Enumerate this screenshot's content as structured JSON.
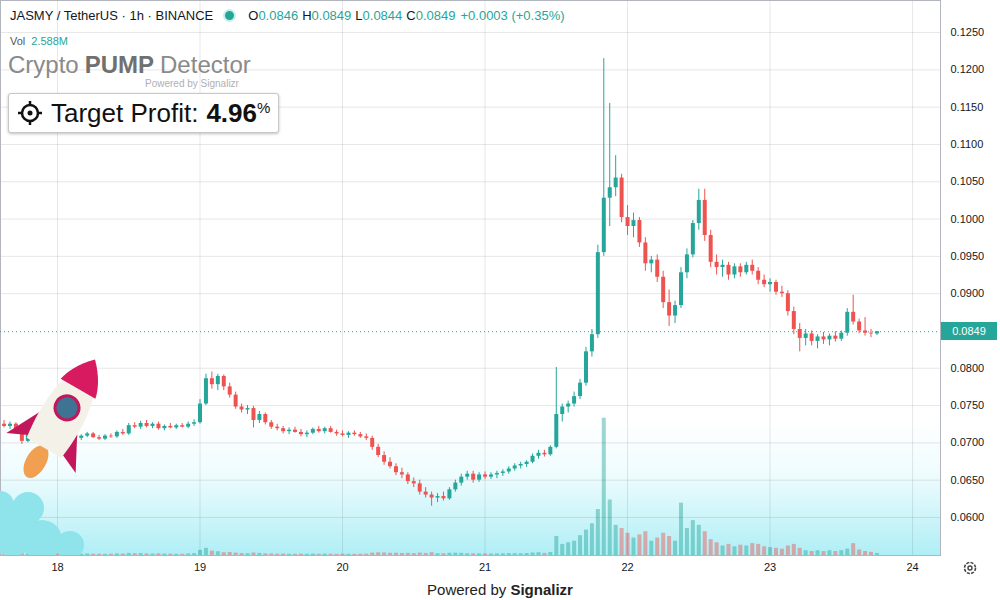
{
  "chart_data": {
    "type": "candlestick",
    "header": "JASMY / TetherUS · 1h · BINANCE",
    "ohlc": [
      {
        "label": "O",
        "value": "0.0846"
      },
      {
        "label": "H",
        "value": "0.0849"
      },
      {
        "label": "L",
        "value": "0.0844"
      },
      {
        "label": "C",
        "value": "0.0849"
      }
    ],
    "change": "+0.0003 (+0.35%)",
    "vol_label": "Vol",
    "vol_value": "2.588M",
    "title": "Crypto PUMP Detector",
    "title_note": "Powered by Signalizr",
    "target_profit": {
      "label": "Target Profit:",
      "value": "4.96",
      "unit": "%"
    },
    "caption": "Powered by Signalizr",
    "x": [
      17.625,
      17.6667,
      17.7083,
      17.75,
      17.7917,
      17.8333,
      17.875,
      17.9167,
      17.9583,
      18,
      18.0417,
      18.0833,
      18.125,
      18.1667,
      18.2083,
      18.25,
      18.2917,
      18.3333,
      18.375,
      18.4167,
      18.4583,
      18.5,
      18.5417,
      18.5833,
      18.625,
      18.6667,
      18.7083,
      18.75,
      18.7917,
      18.8333,
      18.875,
      18.9167,
      18.9583,
      19,
      19.0417,
      19.0833,
      19.125,
      19.1667,
      19.2083,
      19.25,
      19.2917,
      19.3333,
      19.375,
      19.4167,
      19.4583,
      19.5,
      19.5417,
      19.5833,
      19.625,
      19.6667,
      19.7083,
      19.75,
      19.7917,
      19.8333,
      19.875,
      19.9167,
      19.9583,
      20,
      20.0417,
      20.0833,
      20.125,
      20.1667,
      20.2083,
      20.25,
      20.2917,
      20.3333,
      20.375,
      20.4167,
      20.4583,
      20.5,
      20.5417,
      20.5833,
      20.625,
      20.6667,
      20.7083,
      20.75,
      20.7917,
      20.8333,
      20.875,
      20.9167,
      20.9583,
      21,
      21.0417,
      21.0833,
      21.125,
      21.1667,
      21.2083,
      21.25,
      21.2917,
      21.3333,
      21.375,
      21.4167,
      21.4583,
      21.5,
      21.5417,
      21.5833,
      21.625,
      21.6667,
      21.7083,
      21.75,
      21.7917,
      21.8333,
      21.875,
      21.9167,
      21.9583,
      22,
      22.0417,
      22.0833,
      22.125,
      22.1667,
      22.2083,
      22.25,
      22.2917,
      22.3333,
      22.375,
      22.4167,
      22.4583,
      22.5,
      22.5417,
      22.5833,
      22.625,
      22.6667,
      22.7083,
      22.75,
      22.7917,
      22.8333,
      22.875,
      22.9167,
      22.9583,
      23,
      23.0417,
      23.0833,
      23.125,
      23.1667,
      23.2083,
      23.25,
      23.2917,
      23.3333,
      23.375,
      23.4167,
      23.4583,
      23.5,
      23.5417,
      23.5833,
      23.625,
      23.6667,
      23.7083,
      23.75
    ],
    "open": [
      0.0725,
      0.0722,
      0.0725,
      0.0718,
      0.0702,
      0.071,
      0.0714,
      0.0706,
      0.0708,
      0.0711,
      0.0704,
      0.0708,
      0.071,
      0.0706,
      0.0709,
      0.0712,
      0.0707,
      0.0705,
      0.0709,
      0.0708,
      0.0714,
      0.0712,
      0.0723,
      0.0721,
      0.0726,
      0.0722,
      0.0725,
      0.0719,
      0.0722,
      0.072,
      0.0723,
      0.0721,
      0.0725,
      0.0727,
      0.0752,
      0.0786,
      0.0778,
      0.0789,
      0.0775,
      0.0764,
      0.0748,
      0.0744,
      0.0746,
      0.073,
      0.0738,
      0.0727,
      0.0721,
      0.0719,
      0.0715,
      0.0717,
      0.0714,
      0.0711,
      0.0713,
      0.0718,
      0.0715,
      0.0719,
      0.0714,
      0.0712,
      0.071,
      0.0713,
      0.0711,
      0.0708,
      0.0706,
      0.0694,
      0.0683,
      0.0674,
      0.0668,
      0.066,
      0.0657,
      0.0648,
      0.0645,
      0.0634,
      0.063,
      0.0626,
      0.0628,
      0.0625,
      0.0637,
      0.0646,
      0.0654,
      0.0658,
      0.065,
      0.0657,
      0.0654,
      0.0657,
      0.0659,
      0.0661,
      0.0665,
      0.0669,
      0.0671,
      0.0674,
      0.0682,
      0.0686,
      0.0684,
      0.0694,
      0.0738,
      0.0748,
      0.0752,
      0.0762,
      0.078,
      0.0822,
      0.0845,
      0.0955,
      0.1028,
      0.1042,
      0.1055,
      0.1002,
      0.099,
      0.0998,
      0.0968,
      0.094,
      0.0945,
      0.0922,
      0.0888,
      0.087,
      0.0884,
      0.0928,
      0.0952,
      0.0994,
      0.1025,
      0.0978,
      0.0942,
      0.0935,
      0.0938,
      0.0925,
      0.0936,
      0.0928,
      0.0938,
      0.093,
      0.0918,
      0.0912,
      0.0915,
      0.0902,
      0.09,
      0.0876,
      0.0852,
      0.084,
      0.0846,
      0.0836,
      0.0842,
      0.0838,
      0.0843,
      0.0839,
      0.0847,
      0.0875,
      0.0862,
      0.085,
      0.0847,
      0.0846
    ],
    "high": [
      0.073,
      0.0728,
      0.0727,
      0.072,
      0.0712,
      0.0718,
      0.0716,
      0.0712,
      0.0714,
      0.0713,
      0.071,
      0.0713,
      0.0712,
      0.0711,
      0.0714,
      0.0714,
      0.071,
      0.0711,
      0.0712,
      0.0716,
      0.0718,
      0.0726,
      0.0727,
      0.0729,
      0.073,
      0.0727,
      0.0728,
      0.0724,
      0.0726,
      0.0725,
      0.0726,
      0.0728,
      0.0731,
      0.0758,
      0.0792,
      0.0795,
      0.0792,
      0.0791,
      0.078,
      0.0768,
      0.0752,
      0.075,
      0.0749,
      0.0742,
      0.074,
      0.073,
      0.0725,
      0.0722,
      0.072,
      0.0721,
      0.0718,
      0.0716,
      0.072,
      0.0722,
      0.0721,
      0.0722,
      0.0717,
      0.0716,
      0.0715,
      0.0716,
      0.0714,
      0.0712,
      0.0709,
      0.0698,
      0.0688,
      0.068,
      0.0672,
      0.0666,
      0.066,
      0.0653,
      0.065,
      0.064,
      0.0634,
      0.0632,
      0.0634,
      0.064,
      0.065,
      0.0658,
      0.0662,
      0.0662,
      0.066,
      0.0661,
      0.066,
      0.0662,
      0.0664,
      0.0668,
      0.0672,
      0.0674,
      0.0676,
      0.0685,
      0.069,
      0.069,
      0.0696,
      0.0801,
      0.0752,
      0.0756,
      0.0768,
      0.0785,
      0.0828,
      0.0852,
      0.0965,
      0.1215,
      0.1155,
      0.1085,
      0.106,
      0.1018,
      0.1008,
      0.1002,
      0.0975,
      0.095,
      0.0952,
      0.093,
      0.0905,
      0.089,
      0.0935,
      0.096,
      0.0998,
      0.104,
      0.104,
      0.0985,
      0.0952,
      0.0945,
      0.0942,
      0.094,
      0.094,
      0.0942,
      0.0945,
      0.0935,
      0.0925,
      0.092,
      0.0918,
      0.091,
      0.0904,
      0.0882,
      0.086,
      0.0852,
      0.085,
      0.0845,
      0.0848,
      0.0846,
      0.0849,
      0.085,
      0.088,
      0.0898,
      0.0866,
      0.0868,
      0.0852,
      0.0849
    ],
    "low": [
      0.072,
      0.0718,
      0.0715,
      0.0698,
      0.07,
      0.0706,
      0.0704,
      0.0702,
      0.0705,
      0.0702,
      0.0701,
      0.0705,
      0.0704,
      0.0703,
      0.0707,
      0.0706,
      0.0703,
      0.0703,
      0.0706,
      0.0706,
      0.071,
      0.071,
      0.0719,
      0.0718,
      0.072,
      0.0719,
      0.0717,
      0.0716,
      0.0719,
      0.0718,
      0.072,
      0.0719,
      0.0722,
      0.0725,
      0.075,
      0.0772,
      0.077,
      0.077,
      0.076,
      0.0745,
      0.074,
      0.0738,
      0.072,
      0.0726,
      0.0724,
      0.0718,
      0.0716,
      0.0712,
      0.0711,
      0.0713,
      0.0708,
      0.0707,
      0.0711,
      0.0713,
      0.0712,
      0.0713,
      0.0709,
      0.0708,
      0.0706,
      0.0709,
      0.0706,
      0.0703,
      0.069,
      0.068,
      0.067,
      0.0665,
      0.0656,
      0.0652,
      0.0644,
      0.064,
      0.063,
      0.0626,
      0.0615,
      0.062,
      0.0622,
      0.0623,
      0.0634,
      0.0642,
      0.065,
      0.0646,
      0.0647,
      0.0651,
      0.0651,
      0.0652,
      0.0655,
      0.0658,
      0.0662,
      0.0665,
      0.0667,
      0.0672,
      0.0678,
      0.0681,
      0.0682,
      0.0692,
      0.0728,
      0.074,
      0.0748,
      0.0758,
      0.0776,
      0.0815,
      0.084,
      0.095,
      0.099,
      0.103,
      0.0995,
      0.0978,
      0.0975,
      0.0962,
      0.093,
      0.0928,
      0.0915,
      0.088,
      0.0856,
      0.086,
      0.088,
      0.092,
      0.0948,
      0.0985,
      0.097,
      0.0935,
      0.0925,
      0.0922,
      0.0918,
      0.092,
      0.0922,
      0.0925,
      0.0925,
      0.0912,
      0.0908,
      0.0902,
      0.0898,
      0.0895,
      0.087,
      0.0845,
      0.0822,
      0.083,
      0.083,
      0.0826,
      0.0832,
      0.083,
      0.0835,
      0.0836,
      0.0843,
      0.0858,
      0.0846,
      0.0843,
      0.0841,
      0.0844
    ],
    "close": [
      0.0722,
      0.0725,
      0.0718,
      0.0702,
      0.071,
      0.0714,
      0.0706,
      0.0708,
      0.0711,
      0.0704,
      0.0708,
      0.071,
      0.0706,
      0.0709,
      0.0712,
      0.0707,
      0.0705,
      0.0709,
      0.0708,
      0.0714,
      0.0712,
      0.0723,
      0.0721,
      0.0726,
      0.0722,
      0.0725,
      0.0719,
      0.0722,
      0.072,
      0.0723,
      0.0721,
      0.0725,
      0.0727,
      0.0752,
      0.0786,
      0.0778,
      0.0789,
      0.0775,
      0.0764,
      0.0748,
      0.0744,
      0.0746,
      0.073,
      0.0738,
      0.0727,
      0.0721,
      0.0719,
      0.0715,
      0.0717,
      0.0714,
      0.0711,
      0.0713,
      0.0718,
      0.0715,
      0.0719,
      0.0714,
      0.0712,
      0.071,
      0.0713,
      0.0711,
      0.0708,
      0.0706,
      0.0694,
      0.0683,
      0.0674,
      0.0668,
      0.066,
      0.0657,
      0.0648,
      0.0645,
      0.0634,
      0.063,
      0.0626,
      0.0628,
      0.0625,
      0.0637,
      0.0646,
      0.0654,
      0.0658,
      0.065,
      0.0657,
      0.0654,
      0.0657,
      0.0659,
      0.0661,
      0.0665,
      0.0669,
      0.0671,
      0.0674,
      0.0682,
      0.0686,
      0.0684,
      0.0694,
      0.0738,
      0.0748,
      0.0752,
      0.0762,
      0.078,
      0.0822,
      0.0845,
      0.0955,
      0.1028,
      0.1042,
      0.1055,
      0.1002,
      0.099,
      0.0998,
      0.0968,
      0.094,
      0.0945,
      0.0922,
      0.0888,
      0.087,
      0.0884,
      0.0928,
      0.0952,
      0.0994,
      0.1025,
      0.0978,
      0.0942,
      0.0935,
      0.0938,
      0.0925,
      0.0936,
      0.0928,
      0.0938,
      0.093,
      0.0918,
      0.0912,
      0.0915,
      0.0902,
      0.09,
      0.0876,
      0.0852,
      0.084,
      0.0846,
      0.0836,
      0.0842,
      0.0838,
      0.0843,
      0.0839,
      0.0847,
      0.0875,
      0.0862,
      0.085,
      0.0847,
      0.0846,
      0.0849
    ],
    "volume": {
      "axis": "y2",
      "type": "bar",
      "values": [
        2.1,
        1.8,
        2.0,
        3.0,
        2.2,
        1.9,
        1.6,
        1.7,
        1.5,
        2.0,
        1.8,
        1.6,
        1.5,
        1.7,
        1.9,
        1.6,
        1.5,
        1.4,
        1.6,
        2.0,
        1.8,
        2.6,
        2.2,
        2.4,
        2.0,
        1.9,
        2.1,
        1.8,
        1.7,
        1.6,
        1.5,
        2.0,
        2.3,
        6.5,
        9.0,
        5.5,
        4.8,
        3.5,
        3.8,
        3.0,
        2.4,
        2.2,
        3.2,
        2.6,
        2.1,
        1.9,
        1.7,
        1.8,
        1.6,
        1.5,
        1.7,
        1.5,
        1.8,
        1.6,
        1.7,
        1.5,
        1.4,
        1.6,
        1.5,
        1.4,
        1.6,
        1.7,
        3.0,
        3.4,
        3.2,
        2.8,
        2.9,
        2.5,
        2.7,
        2.4,
        3.1,
        2.6,
        3.5,
        2.3,
        2.2,
        2.8,
        2.9,
        2.7,
        2.2,
        2.0,
        2.1,
        1.9,
        1.8,
        2.0,
        2.1,
        2.4,
        2.3,
        2.2,
        2.5,
        3.2,
        3.6,
        2.6,
        3.8,
        24,
        14,
        16,
        18,
        25,
        32,
        40,
        58,
        173,
        70,
        38,
        34,
        28,
        22,
        26,
        30,
        18,
        22,
        28,
        24,
        18,
        66,
        34,
        44,
        38,
        30,
        20,
        16,
        12,
        14,
        11,
        13,
        12,
        15,
        14,
        11,
        10,
        9,
        8,
        12,
        14,
        9,
        6,
        5,
        6,
        5,
        6,
        5,
        6,
        8,
        15,
        7,
        5,
        4,
        2.588
      ]
    },
    "xlim": [
      17.6,
      24.196
    ],
    "xticks": [
      18,
      19,
      20,
      21,
      22,
      23,
      24
    ],
    "ylim": [
      0.0549,
      0.1293
    ],
    "yticks": [
      {
        "value": 0.06,
        "label": "0.0600"
      },
      {
        "value": 0.065,
        "label": "0.0650"
      },
      {
        "value": 0.07,
        "label": "0.0700"
      },
      {
        "value": 0.075,
        "label": "0.0750"
      },
      {
        "value": 0.08,
        "label": "0.0800"
      },
      {
        "value": 0.09,
        "label": "0.0900"
      },
      {
        "value": 0.095,
        "label": "0.0950"
      },
      {
        "value": 0.1,
        "label": "0.1000"
      },
      {
        "value": 0.105,
        "label": "0.1050"
      },
      {
        "value": 0.11,
        "label": "0.1100"
      },
      {
        "value": 0.115,
        "label": "0.1150"
      },
      {
        "value": 0.12,
        "label": "0.1200"
      },
      {
        "value": 0.125,
        "label": "0.1250"
      }
    ],
    "y2lim": [
      0,
      700
    ],
    "y2ticks": [],
    "grid": true,
    "color": {
      "up": "#26a69a",
      "down": "#ef5350"
    },
    "last_price": {
      "value": 0.0849,
      "label": "0.0849"
    }
  }
}
